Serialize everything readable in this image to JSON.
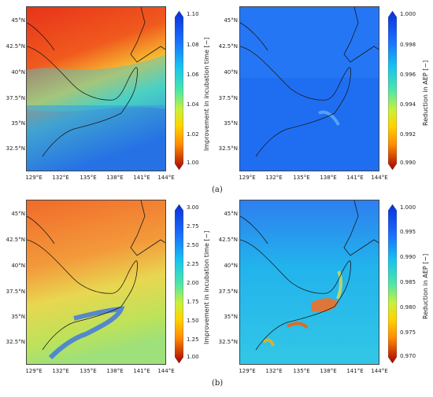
{
  "latitude_ticks": [
    "45°N",
    "42.5°N",
    "40°N",
    "37.5°N",
    "35°N",
    "32.5°N"
  ],
  "longitude_ticks": [
    "129°E",
    "132°E",
    "135°E",
    "138°E",
    "141°E",
    "144°E"
  ],
  "panels": [
    {
      "sub_label": "(a)",
      "left_colorbar": {
        "label": "Improvement in incubation time [−]",
        "ticks": [
          "1.10",
          "1.08",
          "1.06",
          "1.04",
          "1.02",
          "1.00"
        ],
        "range": [
          1.0,
          1.1
        ]
      },
      "right_colorbar": {
        "label": "Reduction in AEP [−]",
        "ticks": [
          "1.000",
          "0.998",
          "0.996",
          "0.994",
          "0.992",
          "0.990"
        ],
        "range": [
          0.99,
          1.0
        ]
      }
    },
    {
      "sub_label": "(b)",
      "left_colorbar": {
        "label": "Improvement in incubation time [−]",
        "ticks": [
          "3.00",
          "2.75",
          "2.50",
          "2.25",
          "2.00",
          "1.75",
          "1.50",
          "1.25",
          "1.00"
        ],
        "range": [
          1.0,
          3.0
        ]
      },
      "right_colorbar": {
        "label": "Reduction in AEP [−]",
        "ticks": [
          "1.000",
          "0.995",
          "0.990",
          "0.985",
          "0.980",
          "0.975",
          "0.970"
        ],
        "range": [
          0.97,
          1.0
        ]
      }
    }
  ],
  "colors": {
    "colormap": [
      "#a50000",
      "#ff2a00",
      "#ff8c00",
      "#ffd500",
      "#c8f03c",
      "#4de6a8",
      "#16c3f0",
      "#1a73ff",
      "#0a2fd9"
    ],
    "coastline": "#1a1a1a"
  }
}
